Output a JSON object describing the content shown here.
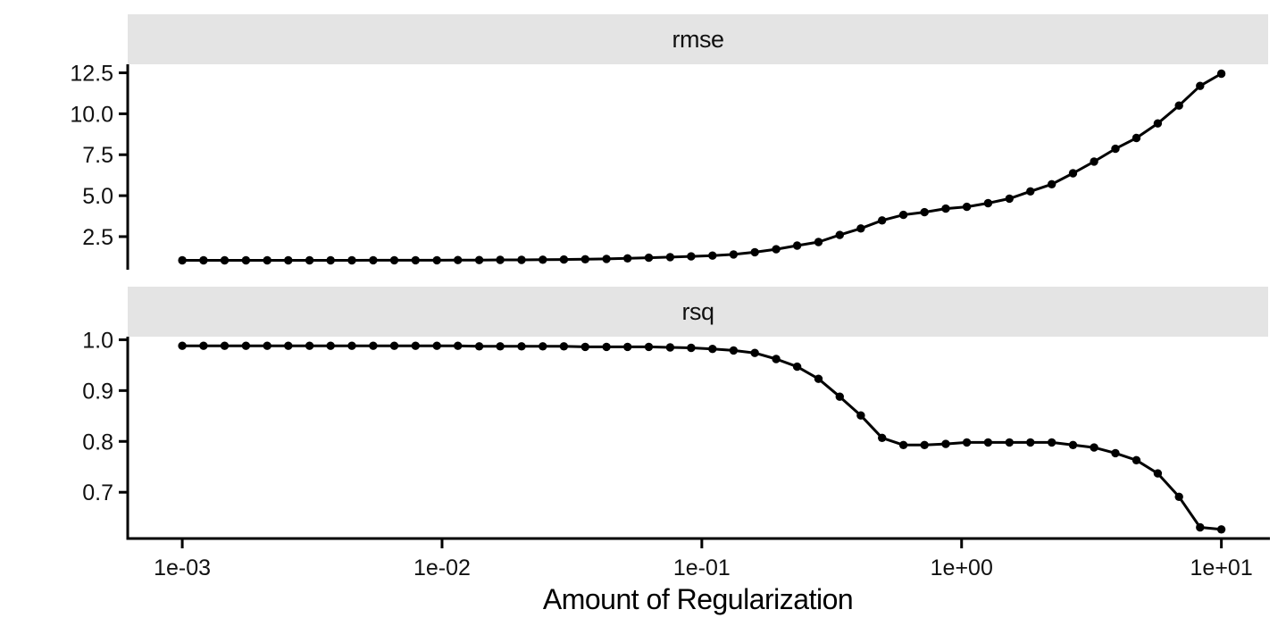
{
  "figure": {
    "background": "#FFFFFF",
    "text_color": "#111111",
    "strip_fill": "#E4E4E4",
    "line_color": "#000000",
    "point_color": "#000000",
    "axis_color": "#000000"
  },
  "x_axis": {
    "title": "Amount of Regularization",
    "scale": "log10",
    "xlim_log10": [
      -3.21,
      1.18
    ],
    "tick_positions_log10": [
      -3,
      -2,
      -1,
      0,
      1
    ],
    "tick_labels": [
      "1e-03",
      "1e-02",
      "1e-01",
      "1e+00",
      "1e+01"
    ]
  },
  "chart_data": [
    {
      "type": "line",
      "facet_label": "rmse",
      "legend": "none",
      "grid": "off",
      "ylim": [
        0.48,
        13.02
      ],
      "y_ticks": [
        2.5,
        5.0,
        7.5,
        10.0,
        12.5
      ],
      "y_tick_labels": [
        "2.5",
        "5.0",
        "7.5",
        "10.0",
        "12.5"
      ],
      "x_log10": [
        -3.0,
        -2.918,
        -2.837,
        -2.755,
        -2.673,
        -2.592,
        -2.51,
        -2.429,
        -2.347,
        -2.265,
        -2.184,
        -2.102,
        -2.02,
        -1.939,
        -1.857,
        -1.776,
        -1.694,
        -1.612,
        -1.531,
        -1.449,
        -1.367,
        -1.286,
        -1.204,
        -1.122,
        -1.041,
        -0.959,
        -0.878,
        -0.796,
        -0.714,
        -0.633,
        -0.551,
        -0.469,
        -0.388,
        -0.306,
        -0.224,
        -0.143,
        -0.061,
        0.02,
        0.102,
        0.184,
        0.265,
        0.347,
        0.429,
        0.51,
        0.592,
        0.673,
        0.755,
        0.837,
        0.918,
        1.0
      ],
      "values": [
        1.05,
        1.05,
        1.05,
        1.05,
        1.05,
        1.05,
        1.05,
        1.05,
        1.05,
        1.06,
        1.06,
        1.06,
        1.06,
        1.07,
        1.07,
        1.08,
        1.08,
        1.09,
        1.1,
        1.12,
        1.14,
        1.17,
        1.21,
        1.25,
        1.29,
        1.34,
        1.41,
        1.55,
        1.73,
        1.95,
        2.17,
        2.6,
        3.0,
        3.49,
        3.83,
        3.99,
        4.21,
        4.32,
        4.54,
        4.82,
        5.26,
        5.7,
        6.37,
        7.08,
        7.86,
        8.52,
        9.41,
        10.5,
        11.7,
        12.45
      ]
    },
    {
      "type": "line",
      "facet_label": "rsq",
      "legend": "none",
      "grid": "off",
      "ylim": [
        0.609,
        1.006
      ],
      "y_ticks": [
        0.7,
        0.8,
        0.9,
        1.0
      ],
      "y_tick_labels": [
        "0.7",
        "0.8",
        "0.9",
        "1.0"
      ],
      "x_log10": [
        -3.0,
        -2.918,
        -2.837,
        -2.755,
        -2.673,
        -2.592,
        -2.51,
        -2.429,
        -2.347,
        -2.265,
        -2.184,
        -2.102,
        -2.02,
        -1.939,
        -1.857,
        -1.776,
        -1.694,
        -1.612,
        -1.531,
        -1.449,
        -1.367,
        -1.286,
        -1.204,
        -1.122,
        -1.041,
        -0.959,
        -0.878,
        -0.796,
        -0.714,
        -0.633,
        -0.551,
        -0.469,
        -0.388,
        -0.306,
        -0.224,
        -0.143,
        -0.061,
        0.02,
        0.102,
        0.184,
        0.265,
        0.347,
        0.429,
        0.51,
        0.592,
        0.673,
        0.755,
        0.837,
        0.918,
        1.0
      ],
      "values": [
        0.988,
        0.988,
        0.988,
        0.988,
        0.988,
        0.988,
        0.988,
        0.988,
        0.988,
        0.988,
        0.988,
        0.988,
        0.988,
        0.988,
        0.987,
        0.987,
        0.987,
        0.987,
        0.987,
        0.986,
        0.986,
        0.986,
        0.986,
        0.985,
        0.984,
        0.982,
        0.979,
        0.974,
        0.962,
        0.947,
        0.923,
        0.888,
        0.851,
        0.807,
        0.793,
        0.793,
        0.795,
        0.798,
        0.798,
        0.798,
        0.798,
        0.798,
        0.793,
        0.788,
        0.777,
        0.763,
        0.737,
        0.691,
        0.631,
        0.627
      ]
    }
  ]
}
